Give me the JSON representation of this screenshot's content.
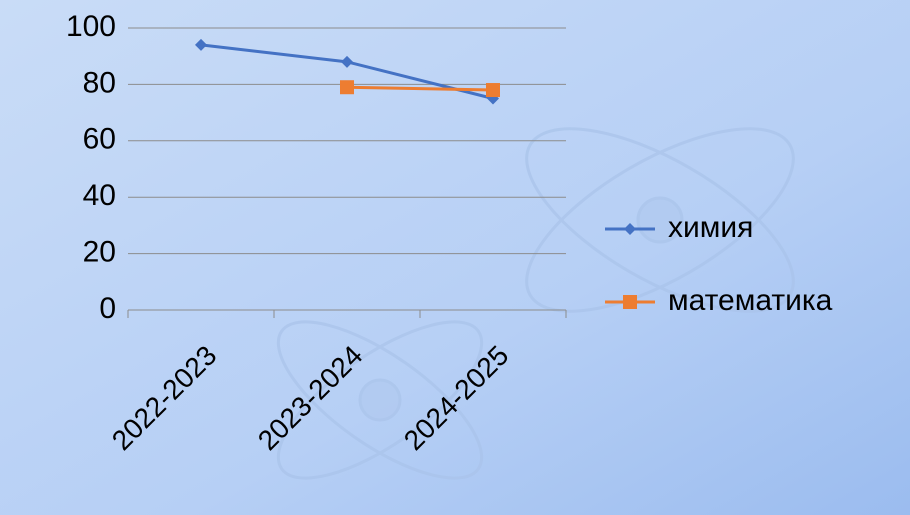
{
  "chart_data": {
    "type": "line",
    "categories": [
      "2022-2023",
      "2023-2024",
      "2024-2025"
    ],
    "series": [
      {
        "name": "химия",
        "color": "#4472c4",
        "marker": "diamond",
        "values": [
          94,
          88,
          75
        ]
      },
      {
        "name": "математика",
        "color": "#ed7d31",
        "marker": "square",
        "values": [
          null,
          79,
          78
        ]
      }
    ],
    "ylim": [
      0,
      100
    ],
    "yticks": [
      0,
      20,
      40,
      60,
      80,
      100
    ],
    "grid": true,
    "legend": "right"
  }
}
